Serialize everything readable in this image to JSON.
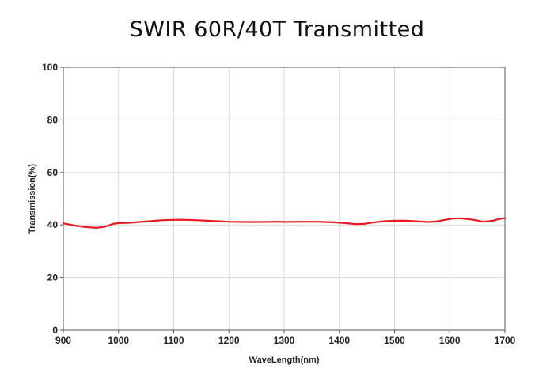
{
  "chart_data": {
    "type": "line",
    "title": "SWIR 60R/40T Transmitted",
    "xlabel": "WaveLength(nm)",
    "ylabel": "Transmission(%)",
    "xlim": [
      900,
      1700
    ],
    "ylim": [
      0,
      100
    ],
    "xticks": [
      900,
      1000,
      1100,
      1200,
      1300,
      1400,
      1500,
      1600,
      1700
    ],
    "yticks": [
      0,
      20,
      40,
      60,
      80,
      100
    ],
    "grid": true,
    "legend": "none",
    "series": [
      {
        "color": "#e8191f",
        "x": [
          900,
          920,
          940,
          960,
          975,
          990,
          1000,
          1020,
          1050,
          1080,
          1110,
          1140,
          1170,
          1200,
          1230,
          1260,
          1290,
          1300,
          1330,
          1360,
          1390,
          1410,
          1430,
          1445,
          1460,
          1480,
          1500,
          1520,
          1540,
          1560,
          1575,
          1590,
          1605,
          1620,
          1635,
          1650,
          1660,
          1670,
          1680,
          1690,
          1700
        ],
        "y": [
          40.6,
          39.8,
          39.2,
          38.9,
          39.3,
          40.4,
          40.7,
          40.8,
          41.3,
          41.8,
          42.0,
          41.8,
          41.5,
          41.2,
          41.1,
          41.1,
          41.2,
          41.1,
          41.2,
          41.2,
          41.0,
          40.7,
          40.3,
          40.4,
          40.9,
          41.4,
          41.6,
          41.6,
          41.4,
          41.1,
          41.3,
          41.9,
          42.4,
          42.5,
          42.2,
          41.7,
          41.2,
          41.4,
          41.7,
          42.3,
          42.6
        ]
      }
    ]
  }
}
